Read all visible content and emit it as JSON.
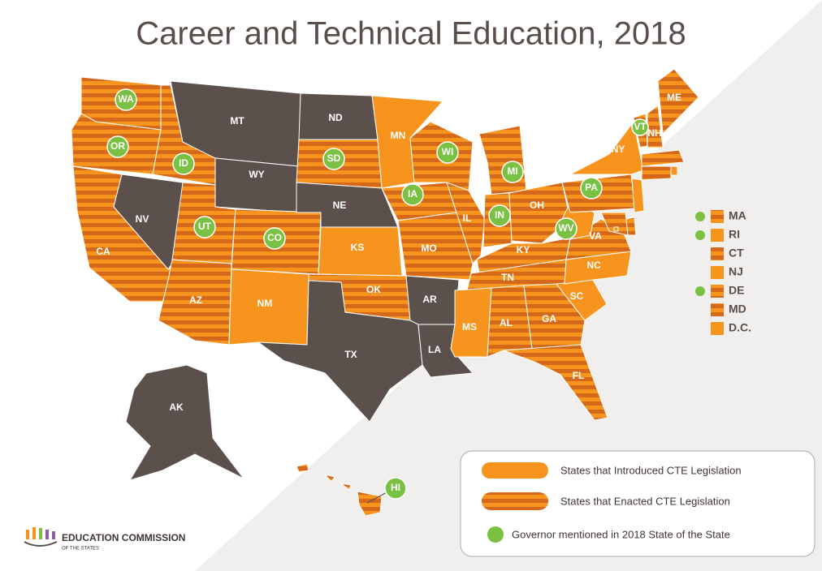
{
  "title": "Career and Technical Education, 2018",
  "colors": {
    "introduced": "#f7941d",
    "enacted_stripe": "#d4691c",
    "none": "#5c504c",
    "governor": "#7ac143"
  },
  "states": [
    {
      "abbr": "WA",
      "status": "enacted",
      "governor": true
    },
    {
      "abbr": "OR",
      "status": "enacted",
      "governor": true
    },
    {
      "abbr": "CA",
      "status": "enacted",
      "governor": false
    },
    {
      "abbr": "NV",
      "status": "none",
      "governor": false
    },
    {
      "abbr": "ID",
      "status": "enacted",
      "governor": true
    },
    {
      "abbr": "MT",
      "status": "none",
      "governor": false
    },
    {
      "abbr": "WY",
      "status": "none",
      "governor": false
    },
    {
      "abbr": "UT",
      "status": "enacted",
      "governor": true
    },
    {
      "abbr": "AZ",
      "status": "enacted",
      "governor": false
    },
    {
      "abbr": "CO",
      "status": "enacted",
      "governor": true
    },
    {
      "abbr": "NM",
      "status": "introduced",
      "governor": false
    },
    {
      "abbr": "ND",
      "status": "none",
      "governor": false
    },
    {
      "abbr": "SD",
      "status": "enacted",
      "governor": true
    },
    {
      "abbr": "NE",
      "status": "none",
      "governor": false
    },
    {
      "abbr": "KS",
      "status": "introduced",
      "governor": false
    },
    {
      "abbr": "OK",
      "status": "enacted",
      "governor": false
    },
    {
      "abbr": "TX",
      "status": "none",
      "governor": false
    },
    {
      "abbr": "MN",
      "status": "introduced",
      "governor": false
    },
    {
      "abbr": "IA",
      "status": "enacted",
      "governor": true
    },
    {
      "abbr": "MO",
      "status": "enacted",
      "governor": false
    },
    {
      "abbr": "AR",
      "status": "none",
      "governor": false
    },
    {
      "abbr": "LA",
      "status": "none",
      "governor": false
    },
    {
      "abbr": "WI",
      "status": "enacted",
      "governor": true
    },
    {
      "abbr": "IL",
      "status": "enacted",
      "governor": false
    },
    {
      "abbr": "MI",
      "status": "enacted",
      "governor": true
    },
    {
      "abbr": "IN",
      "status": "enacted",
      "governor": true
    },
    {
      "abbr": "OH",
      "status": "enacted",
      "governor": false
    },
    {
      "abbr": "KY",
      "status": "enacted",
      "governor": false
    },
    {
      "abbr": "TN",
      "status": "enacted",
      "governor": false
    },
    {
      "abbr": "MS",
      "status": "introduced",
      "governor": false
    },
    {
      "abbr": "AL",
      "status": "enacted",
      "governor": false
    },
    {
      "abbr": "GA",
      "status": "enacted",
      "governor": false
    },
    {
      "abbr": "FL",
      "status": "enacted",
      "governor": false
    },
    {
      "abbr": "SC",
      "status": "introduced",
      "governor": false
    },
    {
      "abbr": "NC",
      "status": "introduced",
      "governor": false
    },
    {
      "abbr": "VA",
      "status": "enacted",
      "governor": false
    },
    {
      "abbr": "WV",
      "status": "introduced",
      "governor": true
    },
    {
      "abbr": "PA",
      "status": "enacted",
      "governor": true
    },
    {
      "abbr": "NY",
      "status": "introduced",
      "governor": false
    },
    {
      "abbr": "VT",
      "status": "enacted",
      "governor": true
    },
    {
      "abbr": "NH",
      "status": "enacted",
      "governor": false
    },
    {
      "abbr": "ME",
      "status": "enacted",
      "governor": false
    },
    {
      "abbr": "MA",
      "status": "enacted",
      "governor": true
    },
    {
      "abbr": "RI",
      "status": "introduced",
      "governor": true
    },
    {
      "abbr": "CT",
      "status": "enacted",
      "governor": false
    },
    {
      "abbr": "NJ",
      "status": "introduced",
      "governor": false
    },
    {
      "abbr": "DE",
      "status": "enacted",
      "governor": true
    },
    {
      "abbr": "MD",
      "status": "enacted",
      "governor": false
    },
    {
      "abbr": "D.C.",
      "status": "introduced",
      "governor": false
    },
    {
      "abbr": "AK",
      "status": "none",
      "governor": false
    },
    {
      "abbr": "HI",
      "status": "enacted",
      "governor": true
    }
  ],
  "legend": {
    "introduced": "States that Introduced CTE Legislation",
    "enacted": "States that Enacted CTE Legislation",
    "governor": "Governor mentioned in 2018 State of the State"
  },
  "logo": {
    "name": "EDUCATION COMMISSION",
    "sub": "OF THE STATES"
  }
}
